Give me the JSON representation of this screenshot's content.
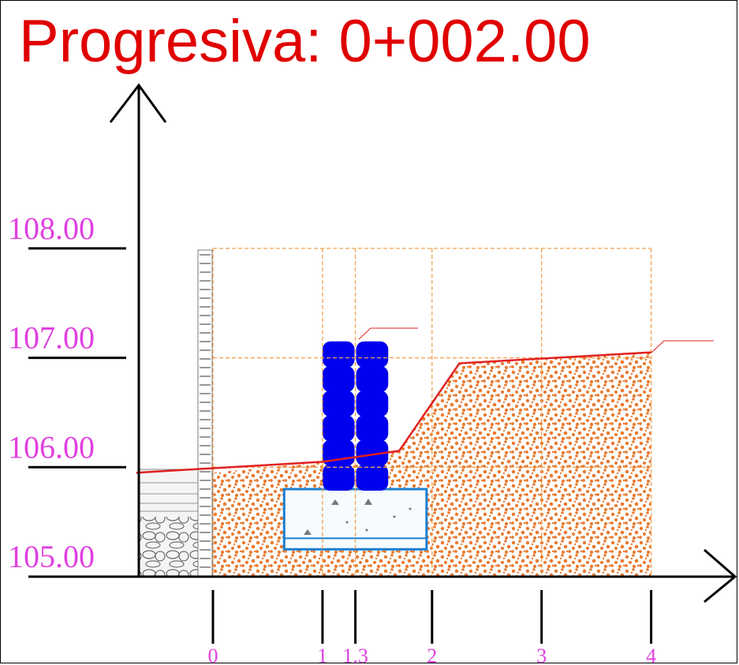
{
  "title": "Progresiva: 0+002.00",
  "colors": {
    "title": "#e00000",
    "elevation_labels": "#e040e0",
    "station_labels": "#e040e0",
    "grid": "#f0a050",
    "soil": "#e87a30",
    "ground_line": "#e02020",
    "bags": "#0000ee",
    "footing_border": "#1a7fd0",
    "axes": "#000000"
  },
  "elevations": [
    "108.00",
    "107.00",
    "106.00",
    "105.00"
  ],
  "stations": [
    "0",
    "1",
    "1.3",
    "2",
    "3",
    "4"
  ],
  "elevation_values": [
    108,
    107,
    106,
    105
  ],
  "station_values": [
    0,
    1,
    1.3,
    2,
    3,
    4
  ],
  "ground_profile": [
    {
      "x": -0.7,
      "y": 105.95
    },
    {
      "x": 1.0,
      "y": 106.05
    },
    {
      "x": 1.7,
      "y": 106.15
    },
    {
      "x": 2.25,
      "y": 106.95
    },
    {
      "x": 4.0,
      "y": 107.05
    }
  ],
  "structure": {
    "sandbags": {
      "x_from": 1.0,
      "x_to": 1.6,
      "y_from": 105.8,
      "y_to": 107.15,
      "layers": 6
    },
    "footing": {
      "x_from": 0.65,
      "x_to": 1.95,
      "y_from": 105.25,
      "y_to": 105.8
    }
  }
}
